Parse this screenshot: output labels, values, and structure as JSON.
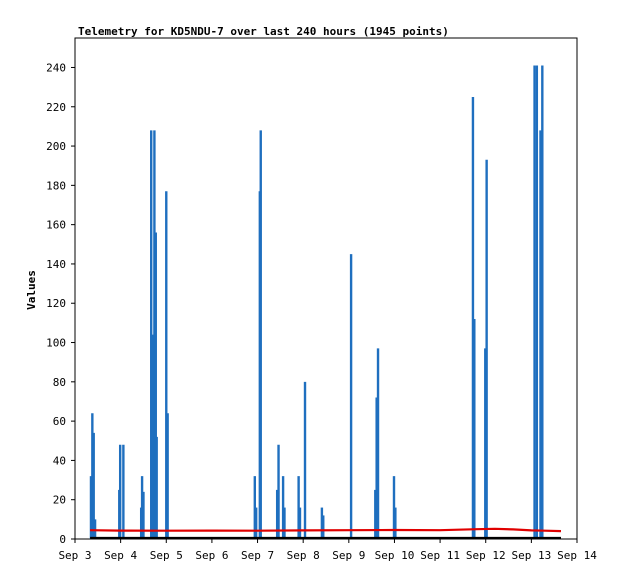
{
  "chart_data": {
    "type": "bar",
    "title": "Telemetry for KD5NDU-7 over last 240 hours (1945 points)",
    "xlabel": "",
    "ylabel": "Values",
    "xlim": [
      3.0,
      14.0
    ],
    "ylim": [
      0,
      255
    ],
    "grid": false,
    "legend": "none",
    "x_ticks": [
      3,
      4,
      5,
      6,
      7,
      8,
      9,
      10,
      11,
      12,
      13,
      14
    ],
    "x_tick_labels": [
      "Sep 3",
      "Sep 4",
      "Sep 5",
      "Sep 6",
      "Sep 7",
      "Sep 8",
      "Sep 9",
      "Sep 10",
      "Sep 11",
      "Sep 12",
      "Sep 13",
      "Sep 14"
    ],
    "y_ticks": [
      0,
      20,
      40,
      60,
      80,
      100,
      120,
      140,
      160,
      180,
      200,
      220,
      240
    ],
    "series": [
      {
        "type": "spikes",
        "color": "#1f6fbf",
        "points": [
          {
            "x": 3.35,
            "y": 32
          },
          {
            "x": 3.38,
            "y": 64
          },
          {
            "x": 3.41,
            "y": 54
          },
          {
            "x": 3.44,
            "y": 10
          },
          {
            "x": 3.97,
            "y": 25
          },
          {
            "x": 3.99,
            "y": 48
          },
          {
            "x": 4.06,
            "y": 48
          },
          {
            "x": 4.45,
            "y": 16
          },
          {
            "x": 4.47,
            "y": 32
          },
          {
            "x": 4.5,
            "y": 24
          },
          {
            "x": 4.67,
            "y": 208
          },
          {
            "x": 4.71,
            "y": 104
          },
          {
            "x": 4.74,
            "y": 208
          },
          {
            "x": 4.77,
            "y": 156
          },
          {
            "x": 4.79,
            "y": 52
          },
          {
            "x": 5.0,
            "y": 177
          },
          {
            "x": 5.03,
            "y": 64
          },
          {
            "x": 6.94,
            "y": 32
          },
          {
            "x": 6.97,
            "y": 16
          },
          {
            "x": 7.05,
            "y": 177
          },
          {
            "x": 7.07,
            "y": 208
          },
          {
            "x": 7.43,
            "y": 25
          },
          {
            "x": 7.46,
            "y": 48
          },
          {
            "x": 7.56,
            "y": 32
          },
          {
            "x": 7.59,
            "y": 16
          },
          {
            "x": 7.9,
            "y": 32
          },
          {
            "x": 7.93,
            "y": 16
          },
          {
            "x": 8.04,
            "y": 80
          },
          {
            "x": 8.41,
            "y": 16
          },
          {
            "x": 8.44,
            "y": 12
          },
          {
            "x": 9.05,
            "y": 145
          },
          {
            "x": 9.58,
            "y": 25
          },
          {
            "x": 9.61,
            "y": 72
          },
          {
            "x": 9.64,
            "y": 97
          },
          {
            "x": 9.99,
            "y": 32
          },
          {
            "x": 10.02,
            "y": 16
          },
          {
            "x": 11.72,
            "y": 225
          },
          {
            "x": 11.75,
            "y": 112
          },
          {
            "x": 11.99,
            "y": 97
          },
          {
            "x": 12.02,
            "y": 193
          },
          {
            "x": 13.07,
            "y": 241
          },
          {
            "x": 13.12,
            "y": 241
          },
          {
            "x": 13.2,
            "y": 208
          },
          {
            "x": 13.24,
            "y": 241
          }
        ]
      },
      {
        "type": "line",
        "color": "#e00000",
        "points": [
          {
            "x": 3.33,
            "y": 4.5
          },
          {
            "x": 4.0,
            "y": 4.3
          },
          {
            "x": 5.0,
            "y": 4.2
          },
          {
            "x": 6.0,
            "y": 4.3
          },
          {
            "x": 7.0,
            "y": 4.2
          },
          {
            "x": 8.0,
            "y": 4.4
          },
          {
            "x": 9.0,
            "y": 4.5
          },
          {
            "x": 10.0,
            "y": 4.6
          },
          {
            "x": 11.0,
            "y": 4.5
          },
          {
            "x": 11.8,
            "y": 5.0
          },
          {
            "x": 12.2,
            "y": 5.2
          },
          {
            "x": 12.6,
            "y": 4.9
          },
          {
            "x": 13.0,
            "y": 4.4
          },
          {
            "x": 13.3,
            "y": 4.2
          },
          {
            "x": 13.65,
            "y": 4.0
          }
        ]
      },
      {
        "type": "line",
        "color": "#000000",
        "points": [
          {
            "x": 3.33,
            "y": 0.5
          },
          {
            "x": 13.65,
            "y": 0.5
          }
        ]
      }
    ]
  }
}
